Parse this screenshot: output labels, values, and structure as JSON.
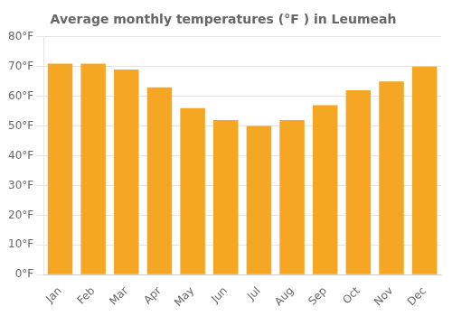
{
  "chart_data": {
    "type": "bar",
    "title": "Average monthly temperatures (°F ) in Leumeah",
    "categories": [
      "Jan",
      "Feb",
      "Mar",
      "Apr",
      "May",
      "Jun",
      "Jul",
      "Aug",
      "Sep",
      "Oct",
      "Nov",
      "Dec"
    ],
    "values": [
      71,
      71,
      69,
      63,
      56,
      52,
      50,
      52,
      57,
      62,
      65,
      70
    ],
    "color": "#F5A623",
    "ylim": [
      0,
      80
    ],
    "yticks": [
      {
        "value": 0,
        "label": "0°F"
      },
      {
        "value": 10,
        "label": "10°F"
      },
      {
        "value": 20,
        "label": "20°F"
      },
      {
        "value": 30,
        "label": "30°F"
      },
      {
        "value": 40,
        "label": "40°F"
      },
      {
        "value": 50,
        "label": "50°F"
      },
      {
        "value": 60,
        "label": "60°F"
      },
      {
        "value": 70,
        "label": "70°F"
      },
      {
        "value": 80,
        "label": "80°F"
      }
    ],
    "grid": "y"
  }
}
